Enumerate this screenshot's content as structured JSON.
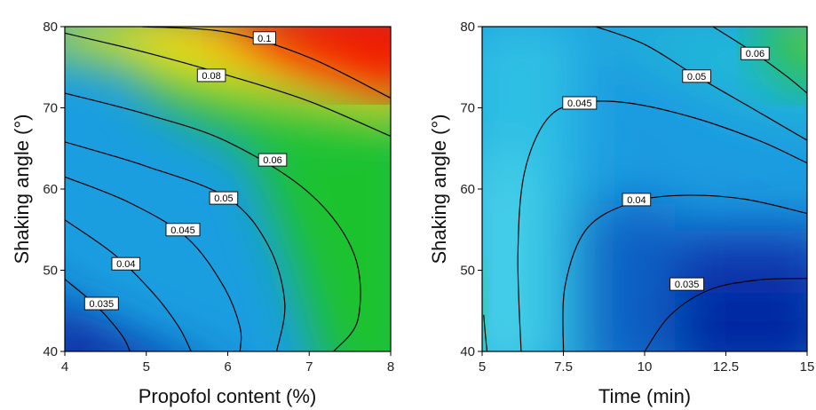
{
  "chart_data": [
    {
      "type": "contour",
      "title": "",
      "xlabel": "Propofol content (%)",
      "ylabel": "Shaking angle (°)",
      "xlim": [
        4,
        8
      ],
      "ylim": [
        40,
        80
      ],
      "xticks": [
        "4",
        "5",
        "6",
        "7",
        "8"
      ],
      "yticks": [
        "40",
        "50",
        "60",
        "70",
        "80"
      ],
      "colormap": [
        "#0a2fa8",
        "#1e7fd8",
        "#22b6e6",
        "#16c86a",
        "#1cc41a",
        "#f2f000",
        "#ff9a00",
        "#f21000"
      ],
      "zrange": [
        0.03,
        0.1
      ],
      "contours": [
        {
          "level": "0.035",
          "label_at": [
            4.45,
            45.9
          ],
          "points": [
            [
              4,
              48.9
            ],
            [
              4.4,
              45.5
            ],
            [
              4.7,
              42.0
            ],
            [
              4.8,
              40
            ]
          ]
        },
        {
          "level": "0.04",
          "label_at": [
            4.75,
            50.8
          ],
          "points": [
            [
              4,
              56.2
            ],
            [
              4.6,
              52.0
            ],
            [
              5.1,
              47.0
            ],
            [
              5.4,
              43.0
            ],
            [
              5.55,
              40
            ]
          ]
        },
        {
          "level": "0.045",
          "label_at": [
            5.45,
            55.0
          ],
          "points": [
            [
              4,
              61.5
            ],
            [
              4.8,
              58.3
            ],
            [
              5.5,
              54.0
            ],
            [
              5.95,
              48.0
            ],
            [
              6.15,
              43.0
            ],
            [
              6.15,
              40
            ]
          ]
        },
        {
          "level": "0.05",
          "label_at": [
            5.95,
            58.9
          ],
          "points": [
            [
              4,
              65.8
            ],
            [
              5.0,
              62.8
            ],
            [
              6.0,
              58.9
            ],
            [
              6.5,
              53.0
            ],
            [
              6.7,
              46.0
            ],
            [
              6.6,
              40
            ]
          ]
        },
        {
          "level": "0.06",
          "label_at": [
            6.55,
            63.6
          ],
          "points": [
            [
              4,
              71.8
            ],
            [
              5.0,
              69.2
            ],
            [
              6.0,
              65.8
            ],
            [
              7.0,
              59.5
            ],
            [
              7.55,
              52.0
            ],
            [
              7.6,
              44.0
            ],
            [
              7.3,
              40
            ]
          ]
        },
        {
          "level": "0.08",
          "label_at": [
            5.8,
            74.0
          ],
          "points": [
            [
              4,
              79.2
            ],
            [
              5.0,
              76.8
            ],
            [
              6.0,
              74.0
            ],
            [
              7.0,
              70.8
            ],
            [
              8,
              66.5
            ]
          ]
        },
        {
          "level": "0.1",
          "label_at": [
            6.45,
            78.6
          ],
          "points": [
            [
              4.95,
              80
            ],
            [
              6.0,
              79.3
            ],
            [
              7.0,
              76.2
            ],
            [
              8,
              71.2
            ]
          ]
        }
      ]
    },
    {
      "type": "contour",
      "title": "",
      "xlabel": "Time (min)",
      "ylabel": "Shaking angle (°)",
      "xlim": [
        5,
        15
      ],
      "ylim": [
        40,
        80
      ],
      "xticks": [
        "5",
        "7.5",
        "10",
        "12.5",
        "15"
      ],
      "yticks": [
        "40",
        "50",
        "60",
        "70",
        "80"
      ],
      "colormap": [
        "#0a2fa8",
        "#1e7fd8",
        "#22b6e6",
        "#16c86a",
        "#1cc41a",
        "#f2f000",
        "#ff9a00",
        "#f21000"
      ],
      "zrange": [
        0.03,
        0.1
      ],
      "contours": [
        {
          "level": "0.035",
          "label_at": [
            11.3,
            48.3
          ],
          "points": [
            [
              10.0,
              40
            ],
            [
              10.8,
              44.5
            ],
            [
              12.0,
              47.6
            ],
            [
              13.5,
              48.8
            ],
            [
              15,
              49.0
            ]
          ]
        },
        {
          "level": "0.04",
          "label_at": [
            9.75,
            58.7
          ],
          "points": [
            [
              7.5,
              40
            ],
            [
              7.55,
              48.0
            ],
            [
              8.2,
              55.0
            ],
            [
              9.5,
              58.2
            ],
            [
              11.0,
              59.2
            ],
            [
              13.0,
              58.8
            ],
            [
              15,
              57.0
            ]
          ]
        },
        {
          "level": "0.045",
          "label_at": [
            8.0,
            70.6
          ],
          "points": [
            [
              6.2,
              40
            ],
            [
              6.1,
              52.0
            ],
            [
              6.3,
              62.0
            ],
            [
              7.0,
              68.6
            ],
            [
              8.0,
              70.6
            ],
            [
              9.5,
              70.6
            ],
            [
              11.5,
              68.8
            ],
            [
              13.5,
              66.0
            ],
            [
              15,
              63.2
            ]
          ]
        },
        {
          "level": "0.05",
          "label_at": [
            11.6,
            73.9
          ],
          "points": [
            [
              8.5,
              80
            ],
            [
              10.0,
              77.8
            ],
            [
              11.6,
              73.9
            ],
            [
              13.5,
              69.5
            ],
            [
              15,
              66.0
            ]
          ]
        },
        {
          "level": "0.06",
          "label_at": [
            13.4,
            76.7
          ],
          "points": [
            [
              12.1,
              80
            ],
            [
              13.4,
              76.7
            ],
            [
              14.4,
              73.8
            ],
            [
              15,
              71.8
            ]
          ]
        },
        {
          "level": "",
          "label_at": null,
          "points": [
            [
              5.05,
              44.5
            ],
            [
              5.1,
              42.0
            ],
            [
              5.15,
              40
            ]
          ]
        }
      ]
    }
  ]
}
